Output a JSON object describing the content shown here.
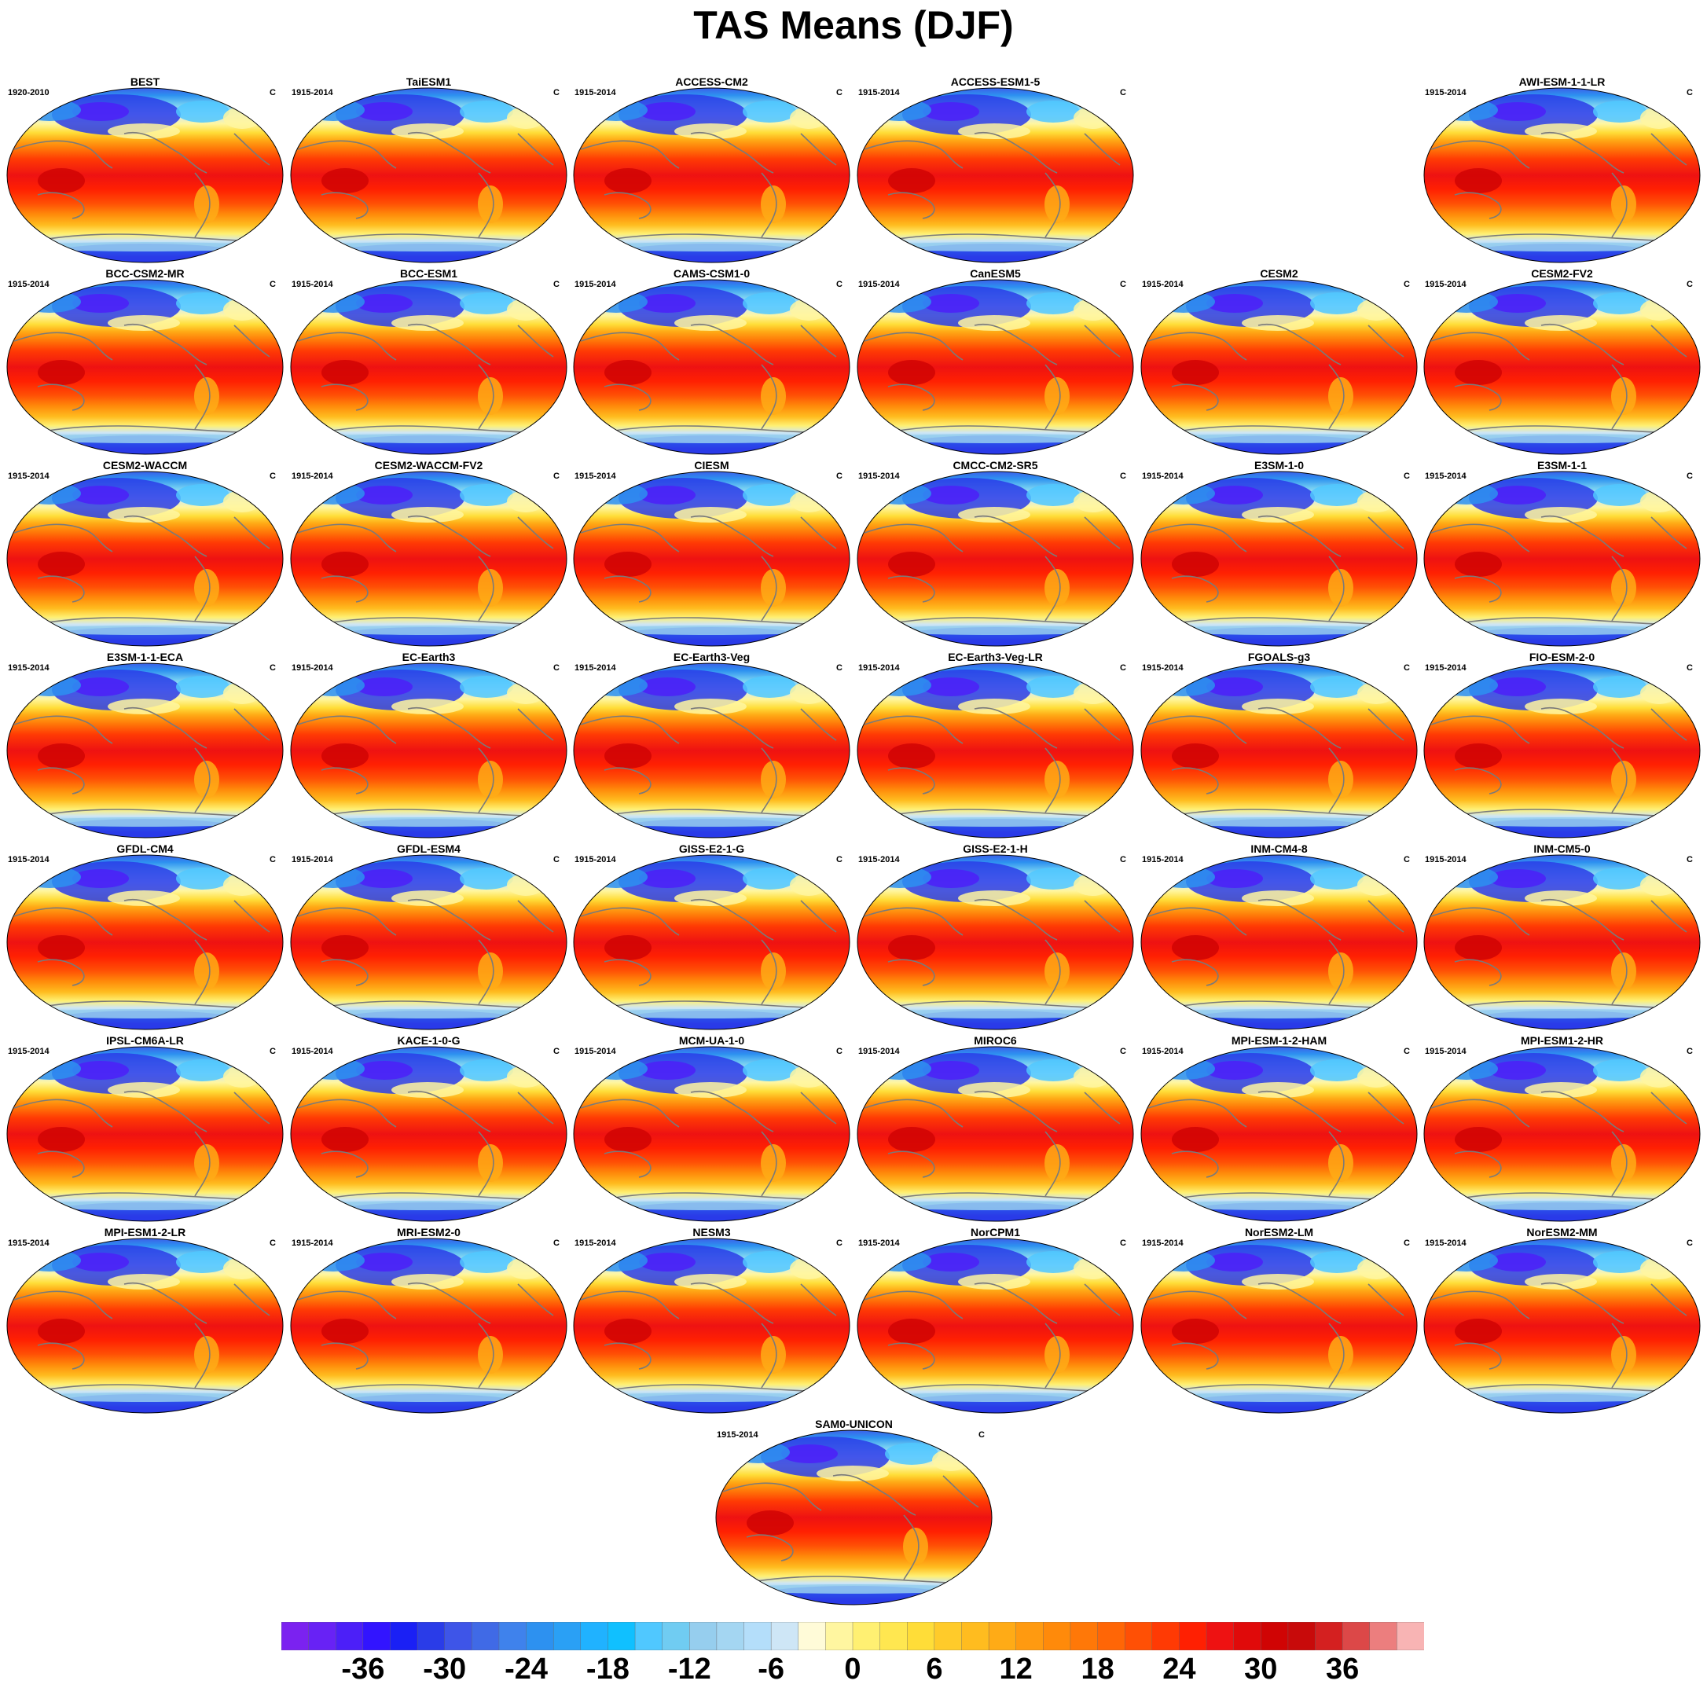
{
  "figure": {
    "title": "TAS Means (DJF)"
  },
  "chart_data": {
    "type": "heatmap",
    "title": "TAS Means (DJF)",
    "variable": "TAS",
    "season": "DJF",
    "unit": "C",
    "panels": [
      {
        "name": "BEST",
        "years": "1920-2010",
        "unit": "C"
      },
      {
        "name": "TaiESM1",
        "years": "1915-2014",
        "unit": "C"
      },
      {
        "name": "ACCESS-CM2",
        "years": "1915-2014",
        "unit": "C"
      },
      {
        "name": "ACCESS-ESM1-5",
        "years": "1915-2014",
        "unit": "C"
      },
      {
        "name": "AWI-ESM-1-1-LR",
        "years": "1915-2014",
        "unit": "C"
      },
      {
        "name": "BCC-CSM2-MR",
        "years": "1915-2014",
        "unit": "C"
      },
      {
        "name": "BCC-ESM1",
        "years": "1915-2014",
        "unit": "C"
      },
      {
        "name": "CAMS-CSM1-0",
        "years": "1915-2014",
        "unit": "C"
      },
      {
        "name": "CanESM5",
        "years": "1915-2014",
        "unit": "C"
      },
      {
        "name": "CESM2",
        "years": "1915-2014",
        "unit": "C"
      },
      {
        "name": "CESM2-FV2",
        "years": "1915-2014",
        "unit": "C"
      },
      {
        "name": "CESM2-WACCM",
        "years": "1915-2014",
        "unit": "C"
      },
      {
        "name": "CESM2-WACCM-FV2",
        "years": "1915-2014",
        "unit": "C"
      },
      {
        "name": "CIESM",
        "years": "1915-2014",
        "unit": "C"
      },
      {
        "name": "CMCC-CM2-SR5",
        "years": "1915-2014",
        "unit": "C"
      },
      {
        "name": "E3SM-1-0",
        "years": "1915-2014",
        "unit": "C"
      },
      {
        "name": "E3SM-1-1",
        "years": "1915-2014",
        "unit": "C"
      },
      {
        "name": "E3SM-1-1-ECA",
        "years": "1915-2014",
        "unit": "C"
      },
      {
        "name": "EC-Earth3",
        "years": "1915-2014",
        "unit": "C"
      },
      {
        "name": "EC-Earth3-Veg",
        "years": "1915-2014",
        "unit": "C"
      },
      {
        "name": "EC-Earth3-Veg-LR",
        "years": "1915-2014",
        "unit": "C"
      },
      {
        "name": "FGOALS-g3",
        "years": "1915-2014",
        "unit": "C"
      },
      {
        "name": "FIO-ESM-2-0",
        "years": "1915-2014",
        "unit": "C"
      },
      {
        "name": "GFDL-CM4",
        "years": "1915-2014",
        "unit": "C"
      },
      {
        "name": "GFDL-ESM4",
        "years": "1915-2014",
        "unit": "C"
      },
      {
        "name": "GISS-E2-1-G",
        "years": "1915-2014",
        "unit": "C"
      },
      {
        "name": "GISS-E2-1-H",
        "years": "1915-2014",
        "unit": "C"
      },
      {
        "name": "INM-CM4-8",
        "years": "1915-2014",
        "unit": "C"
      },
      {
        "name": "INM-CM5-0",
        "years": "1915-2014",
        "unit": "C"
      },
      {
        "name": "IPSL-CM6A-LR",
        "years": "1915-2014",
        "unit": "C"
      },
      {
        "name": "KACE-1-0-G",
        "years": "1915-2014",
        "unit": "C"
      },
      {
        "name": "MCM-UA-1-0",
        "years": "1915-2014",
        "unit": "C"
      },
      {
        "name": "MIROC6",
        "years": "1915-2014",
        "unit": "C"
      },
      {
        "name": "MPI-ESM-1-2-HAM",
        "years": "1915-2014",
        "unit": "C"
      },
      {
        "name": "MPI-ESM1-2-HR",
        "years": "1915-2014",
        "unit": "C"
      },
      {
        "name": "MPI-ESM1-2-LR",
        "years": "1915-2014",
        "unit": "C"
      },
      {
        "name": "MRI-ESM2-0",
        "years": "1915-2014",
        "unit": "C"
      },
      {
        "name": "NESM3",
        "years": "1915-2014",
        "unit": "C"
      },
      {
        "name": "NorCPM1",
        "years": "1915-2014",
        "unit": "C"
      },
      {
        "name": "NorESM2-LM",
        "years": "1915-2014",
        "unit": "C"
      },
      {
        "name": "NorESM2-MM",
        "years": "1915-2014",
        "unit": "C"
      },
      {
        "name": "SAM0-UNICON",
        "years": "1915-2014",
        "unit": "C"
      }
    ],
    "colorbar": {
      "min": -42,
      "max": 42,
      "step": 2,
      "tick_values": [
        -36,
        -30,
        -24,
        -18,
        -12,
        -6,
        0,
        6,
        12,
        18,
        24,
        30,
        36
      ],
      "tick_labels": [
        "-36",
        "-30",
        "-24",
        "-18",
        "-12",
        "-6",
        "0",
        "6",
        "12",
        "18",
        "24",
        "30",
        "36"
      ],
      "colors": [
        "#7b22f0",
        "#6822f5",
        "#4c1ff8",
        "#3214ff",
        "#1a20f5",
        "#2a3ce8",
        "#3e55e8",
        "#406ae6",
        "#3f82ec",
        "#2d91f0",
        "#2aa0f5",
        "#20b2ff",
        "#10c0ff",
        "#50c8ff",
        "#70ccf2",
        "#96ceee",
        "#a4d6f2",
        "#b4defa",
        "#cee6f6",
        "#fffbd8",
        "#fff6a0",
        "#fff072",
        "#ffe750",
        "#ffdd38",
        "#ffcb2a",
        "#ffbc1f",
        "#ffab16",
        "#ff9a10",
        "#ff8a0a",
        "#ff7808",
        "#ff6606",
        "#ff5005",
        "#ff3a04",
        "#ff2002",
        "#ee1212",
        "#e00a0a",
        "#d00404",
        "#c80a0a",
        "#d42020",
        "#dc4848",
        "#ec7e7e",
        "#f8b4b4"
      ]
    }
  }
}
